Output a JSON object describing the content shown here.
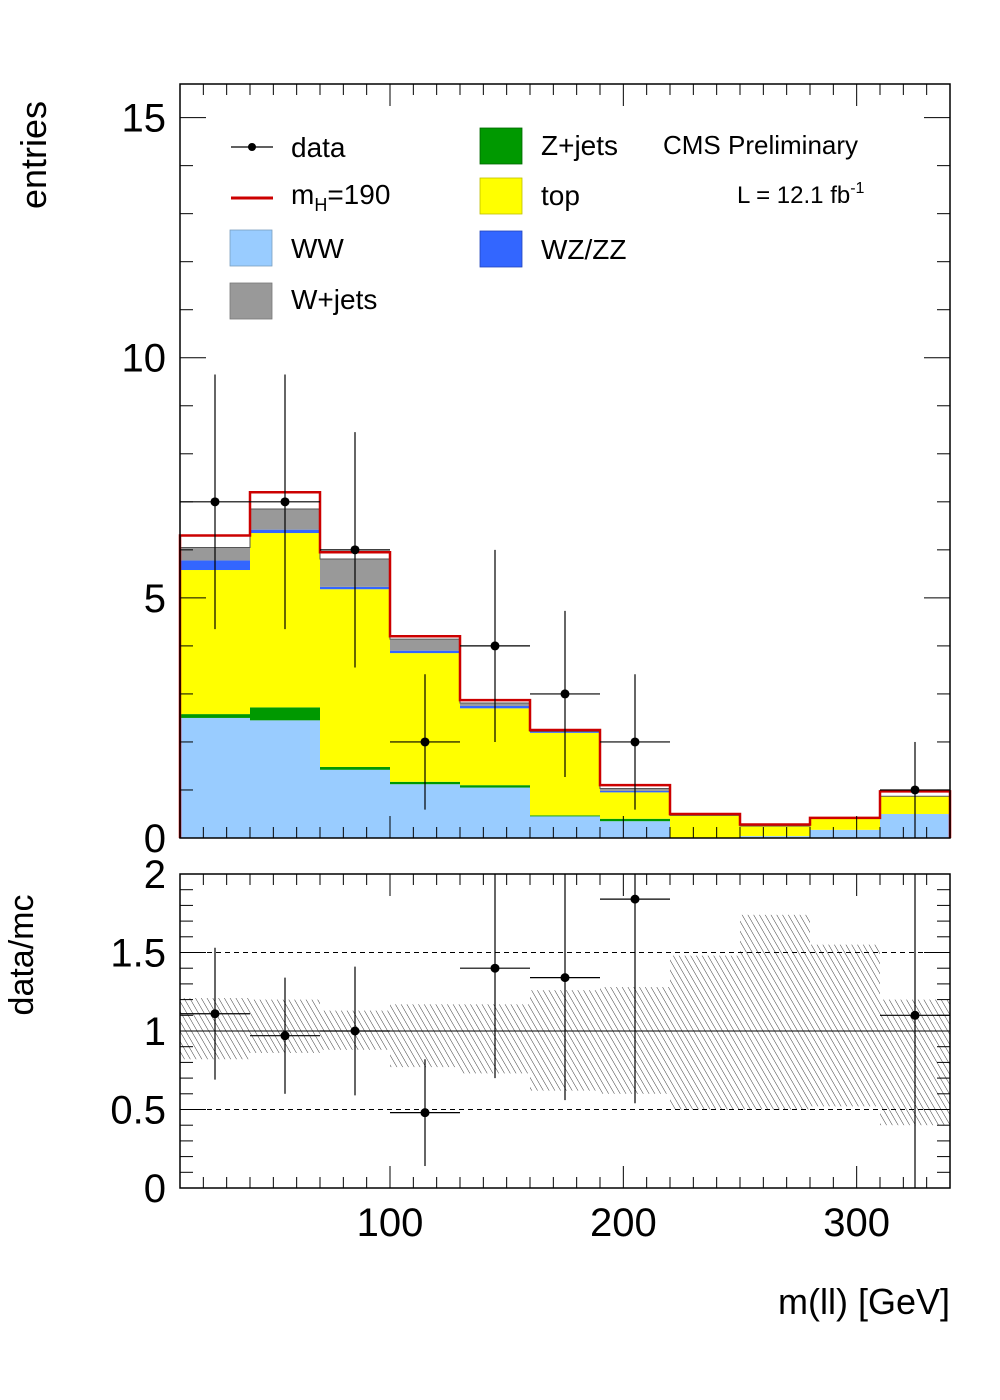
{
  "chart_data": [
    {
      "type": "bar",
      "stacked": true,
      "bin_edges": [
        10,
        40,
        70,
        100,
        130,
        160,
        190,
        220,
        250,
        280,
        310,
        340
      ],
      "ylabel": "entries",
      "ylim": [
        0,
        15.7
      ],
      "y_ticks": [
        "0",
        "5",
        "10",
        "15"
      ],
      "annotations": {
        "experiment": "CMS Preliminary",
        "lumi_prefix": "L = 12.1 fb",
        "lumi_sup": "-1"
      },
      "legend": {
        "placement": "top",
        "entries": {
          "data": "data",
          "mh_base": "m",
          "mh_sub": "H",
          "mh_rest": "=190",
          "ww": "WW",
          "wjets": "W+jets",
          "zjets": "Z+jets",
          "top": "top",
          "wzzz": "WZ/ZZ"
        }
      },
      "series": [
        {
          "name": "WW",
          "color": "#99ccff",
          "values": [
            2.5,
            2.45,
            1.42,
            1.12,
            1.05,
            0.45,
            0.35,
            0.0,
            0.04,
            0.17,
            0.5
          ]
        },
        {
          "name": "Z+jets",
          "color": "#009900",
          "values": [
            0.08,
            0.27,
            0.06,
            0.05,
            0.05,
            0.02,
            0.05,
            0.0,
            0.0,
            0.0,
            0.0
          ]
        },
        {
          "name": "top",
          "color": "#ffff00",
          "values": [
            3.0,
            3.63,
            3.7,
            2.68,
            1.6,
            1.72,
            0.55,
            0.47,
            0.21,
            0.25,
            0.37
          ]
        },
        {
          "name": "WZ/ZZ",
          "color": "#3366ff",
          "values": [
            0.2,
            0.07,
            0.05,
            0.05,
            0.05,
            0.03,
            0.03,
            0.0,
            0.0,
            0.0,
            0.0
          ]
        },
        {
          "name": "W+jets",
          "color": "#999999",
          "values": [
            0.27,
            0.43,
            0.58,
            0.24,
            0.06,
            0.0,
            0.05,
            0.0,
            0.0,
            0.0,
            0.0
          ]
        }
      ],
      "signal": {
        "name": "m_H=190",
        "color": "#cc0000",
        "values": [
          6.3,
          7.2,
          5.95,
          4.2,
          2.87,
          2.25,
          1.1,
          0.5,
          0.28,
          0.42,
          0.97
        ]
      },
      "data_points": [
        {
          "x": 25,
          "y": 7,
          "err": 2.65
        },
        {
          "x": 55,
          "y": 7,
          "err": 2.65
        },
        {
          "x": 85,
          "y": 6,
          "err": 2.45
        },
        {
          "x": 115,
          "y": 2,
          "err": 1.41
        },
        {
          "x": 145,
          "y": 4,
          "err": 2.0
        },
        {
          "x": 175,
          "y": 3,
          "err": 1.73
        },
        {
          "x": 205,
          "y": 2,
          "err": 1.41
        },
        {
          "x": 325,
          "y": 1,
          "err": 1.0
        }
      ]
    },
    {
      "type": "scatter",
      "xlabel": "m(ll) [GeV]",
      "ylabel": "data/mc",
      "xlim": [
        10,
        340
      ],
      "ylim": [
        0,
        2
      ],
      "x_ticks": [
        "100",
        "200",
        "300"
      ],
      "y_ticks": [
        "0",
        "0.5",
        "1",
        "1.5",
        "2"
      ],
      "reference_lines": [
        0.5,
        1.5
      ],
      "uncertainty_band": [
        {
          "low": 0.82,
          "high": 1.21
        },
        {
          "low": 0.86,
          "high": 1.2
        },
        {
          "low": 0.88,
          "high": 1.13
        },
        {
          "low": 0.77,
          "high": 1.17
        },
        {
          "low": 0.73,
          "high": 1.17
        },
        {
          "low": 0.62,
          "high": 1.26
        },
        {
          "low": 0.6,
          "high": 1.28
        },
        {
          "low": 0.5,
          "high": 1.48
        },
        {
          "low": 0.5,
          "high": 1.74
        },
        {
          "low": 0.52,
          "high": 1.55
        },
        {
          "low": 0.4,
          "high": 1.2
        }
      ],
      "points": [
        {
          "x": 25,
          "y": 1.11,
          "err": 0.42
        },
        {
          "x": 55,
          "y": 0.97,
          "err": 0.37
        },
        {
          "x": 85,
          "y": 1.0,
          "err": 0.41
        },
        {
          "x": 115,
          "y": 0.48,
          "err": 0.34
        },
        {
          "x": 145,
          "y": 1.4,
          "err": 0.7
        },
        {
          "x": 175,
          "y": 1.34,
          "err": 0.78
        },
        {
          "x": 205,
          "y": 1.84,
          "err": 1.3
        },
        {
          "x": 325,
          "y": 1.1,
          "err": 1.1
        }
      ]
    }
  ]
}
